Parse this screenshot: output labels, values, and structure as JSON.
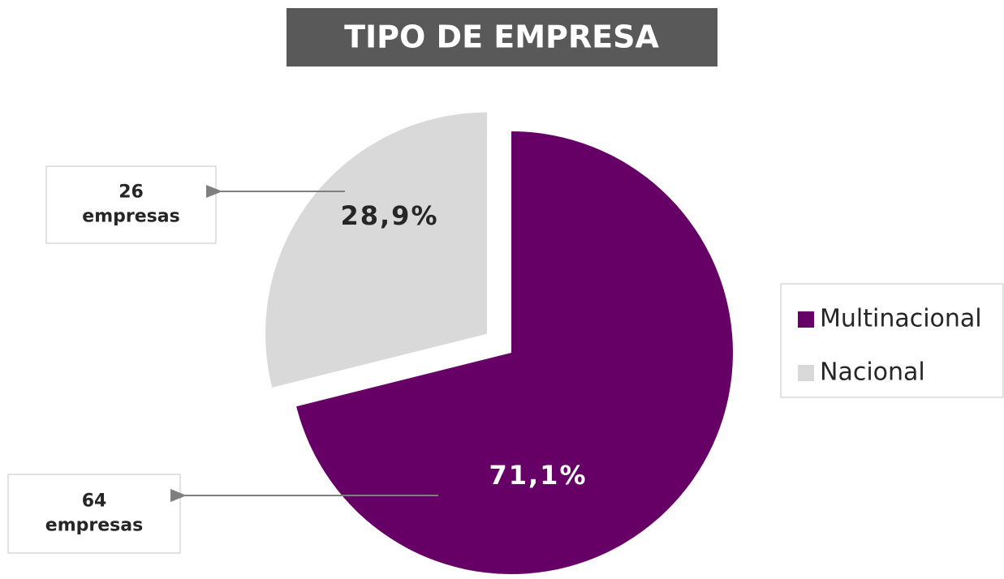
{
  "chart_data": {
    "type": "pie",
    "title": "TIPO DE EMPRESA",
    "categories": [
      "Multinacional",
      "Nacional"
    ],
    "values": [
      71.1,
      28.9
    ],
    "value_labels": [
      "71,1%",
      "28,9%"
    ],
    "colors": [
      "#660066",
      "#d9d9d9"
    ],
    "annotations": [
      [
        "64",
        "empresas"
      ],
      [
        "26",
        "empresas"
      ]
    ],
    "legend": "right"
  }
}
